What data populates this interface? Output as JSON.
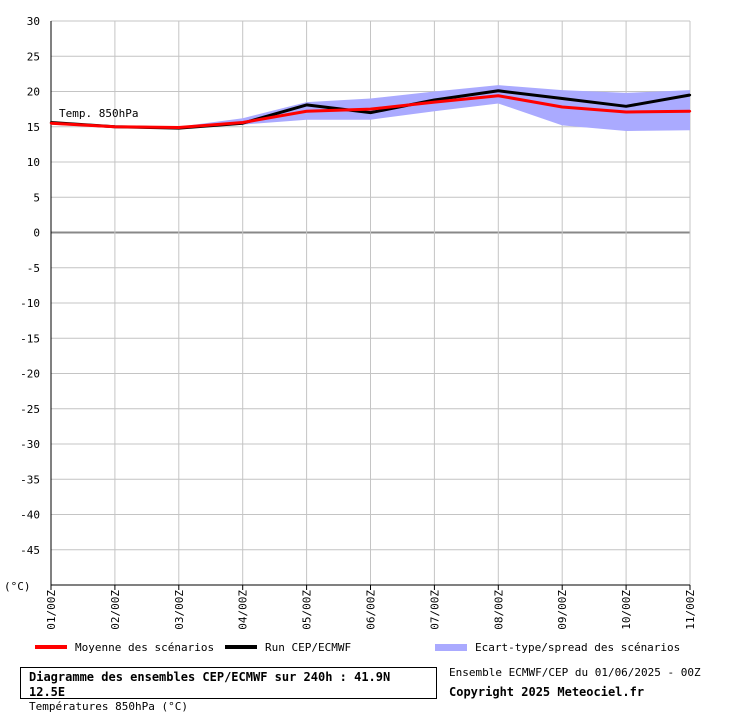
{
  "chart_data": {
    "type": "line",
    "categories": [
      "01/00Z",
      "02/00Z",
      "03/00Z",
      "04/00Z",
      "05/00Z",
      "06/00Z",
      "07/00Z",
      "08/00Z",
      "09/00Z",
      "10/00Z",
      "11/00Z"
    ],
    "y_ticks": [
      30,
      25,
      20,
      15,
      10,
      5,
      0,
      -5,
      -10,
      -15,
      -20,
      -25,
      -30,
      -35,
      -40,
      -45
    ],
    "ylim": [
      -50,
      30
    ],
    "ylabel": "(°C)",
    "annotation": "Temp. 850hPa",
    "grid": true,
    "series": [
      {
        "name": "Moyenne des scénarios",
        "color": "#ff0000",
        "values": [
          15.5,
          15.0,
          14.9,
          15.6,
          17.2,
          17.5,
          18.5,
          19.4,
          17.8,
          17.1,
          17.2
        ]
      },
      {
        "name": "Run CEP/ECMWF",
        "color": "#000000",
        "values": [
          15.6,
          15.0,
          14.8,
          15.5,
          18.1,
          17.0,
          18.8,
          20.1,
          19.0,
          17.9,
          19.5
        ]
      }
    ],
    "spread": {
      "name": "Ecart-type/spread des scénarios",
      "color": "#aaaaff",
      "upper": [
        15.7,
        15.2,
        15.0,
        16.2,
        18.5,
        19.0,
        20.0,
        20.9,
        20.2,
        19.8,
        20.2
      ],
      "lower": [
        15.3,
        14.8,
        14.7,
        15.3,
        16.0,
        16.0,
        17.2,
        18.3,
        15.2,
        14.4,
        14.5
      ]
    }
  },
  "titles": {
    "main": "Diagramme des ensembles CEP/ECMWF sur 240h : 41.9N 12.5E",
    "sub": "Températures 850hPa (°C)",
    "run_info": "Ensemble ECMWF/CEP du 01/06/2025 - 00Z",
    "copyright": "Copyright 2025 Meteociel.fr"
  }
}
